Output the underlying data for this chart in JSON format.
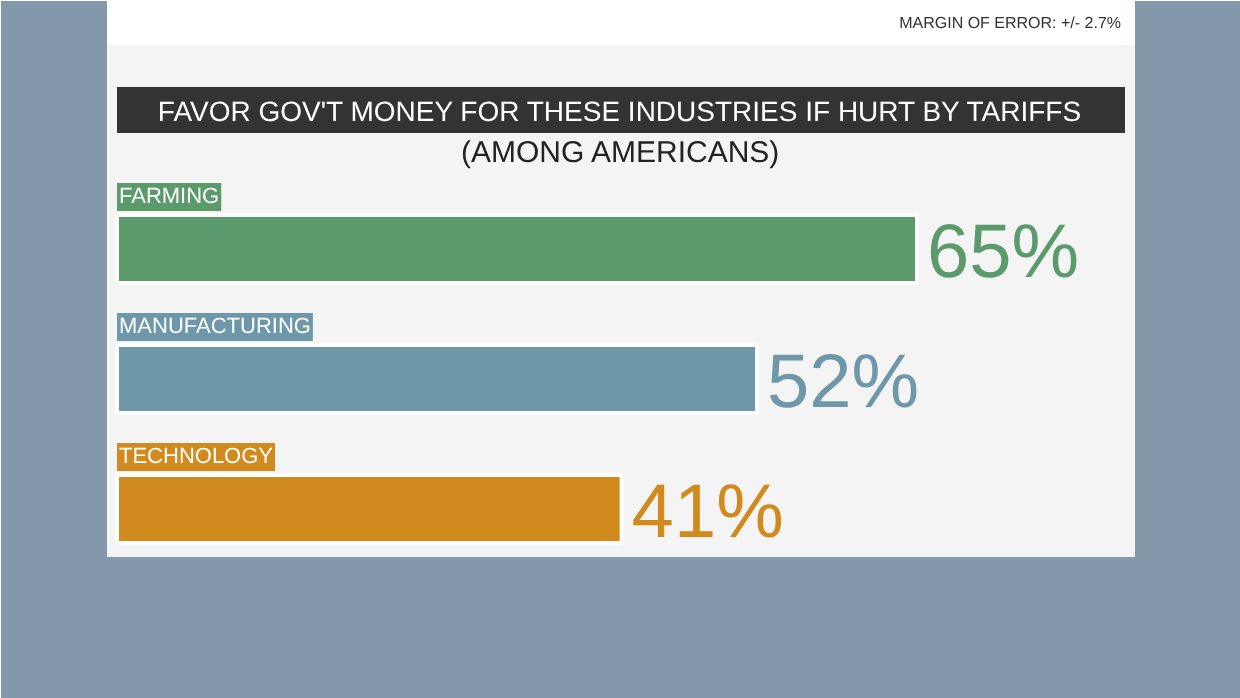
{
  "chart_data": {
    "type": "bar",
    "orientation": "horizontal",
    "title": "FAVOR GOV'T MONEY FOR THESE INDUSTRIES IF HURT BY TARIFFS",
    "subtitle": "(AMONG AMERICANS)",
    "annotations": [
      "MARGIN OF ERROR: +/- 2.7%"
    ],
    "categories": [
      "FARMING",
      "MANUFACTURING",
      "TECHNOLOGY"
    ],
    "values": [
      65,
      52,
      41
    ],
    "colors": [
      "#5b9a6b",
      "#6e98a9",
      "#d08a1e"
    ],
    "value_labels": [
      "65%",
      "52%",
      "41%"
    ],
    "grid": false
  }
}
